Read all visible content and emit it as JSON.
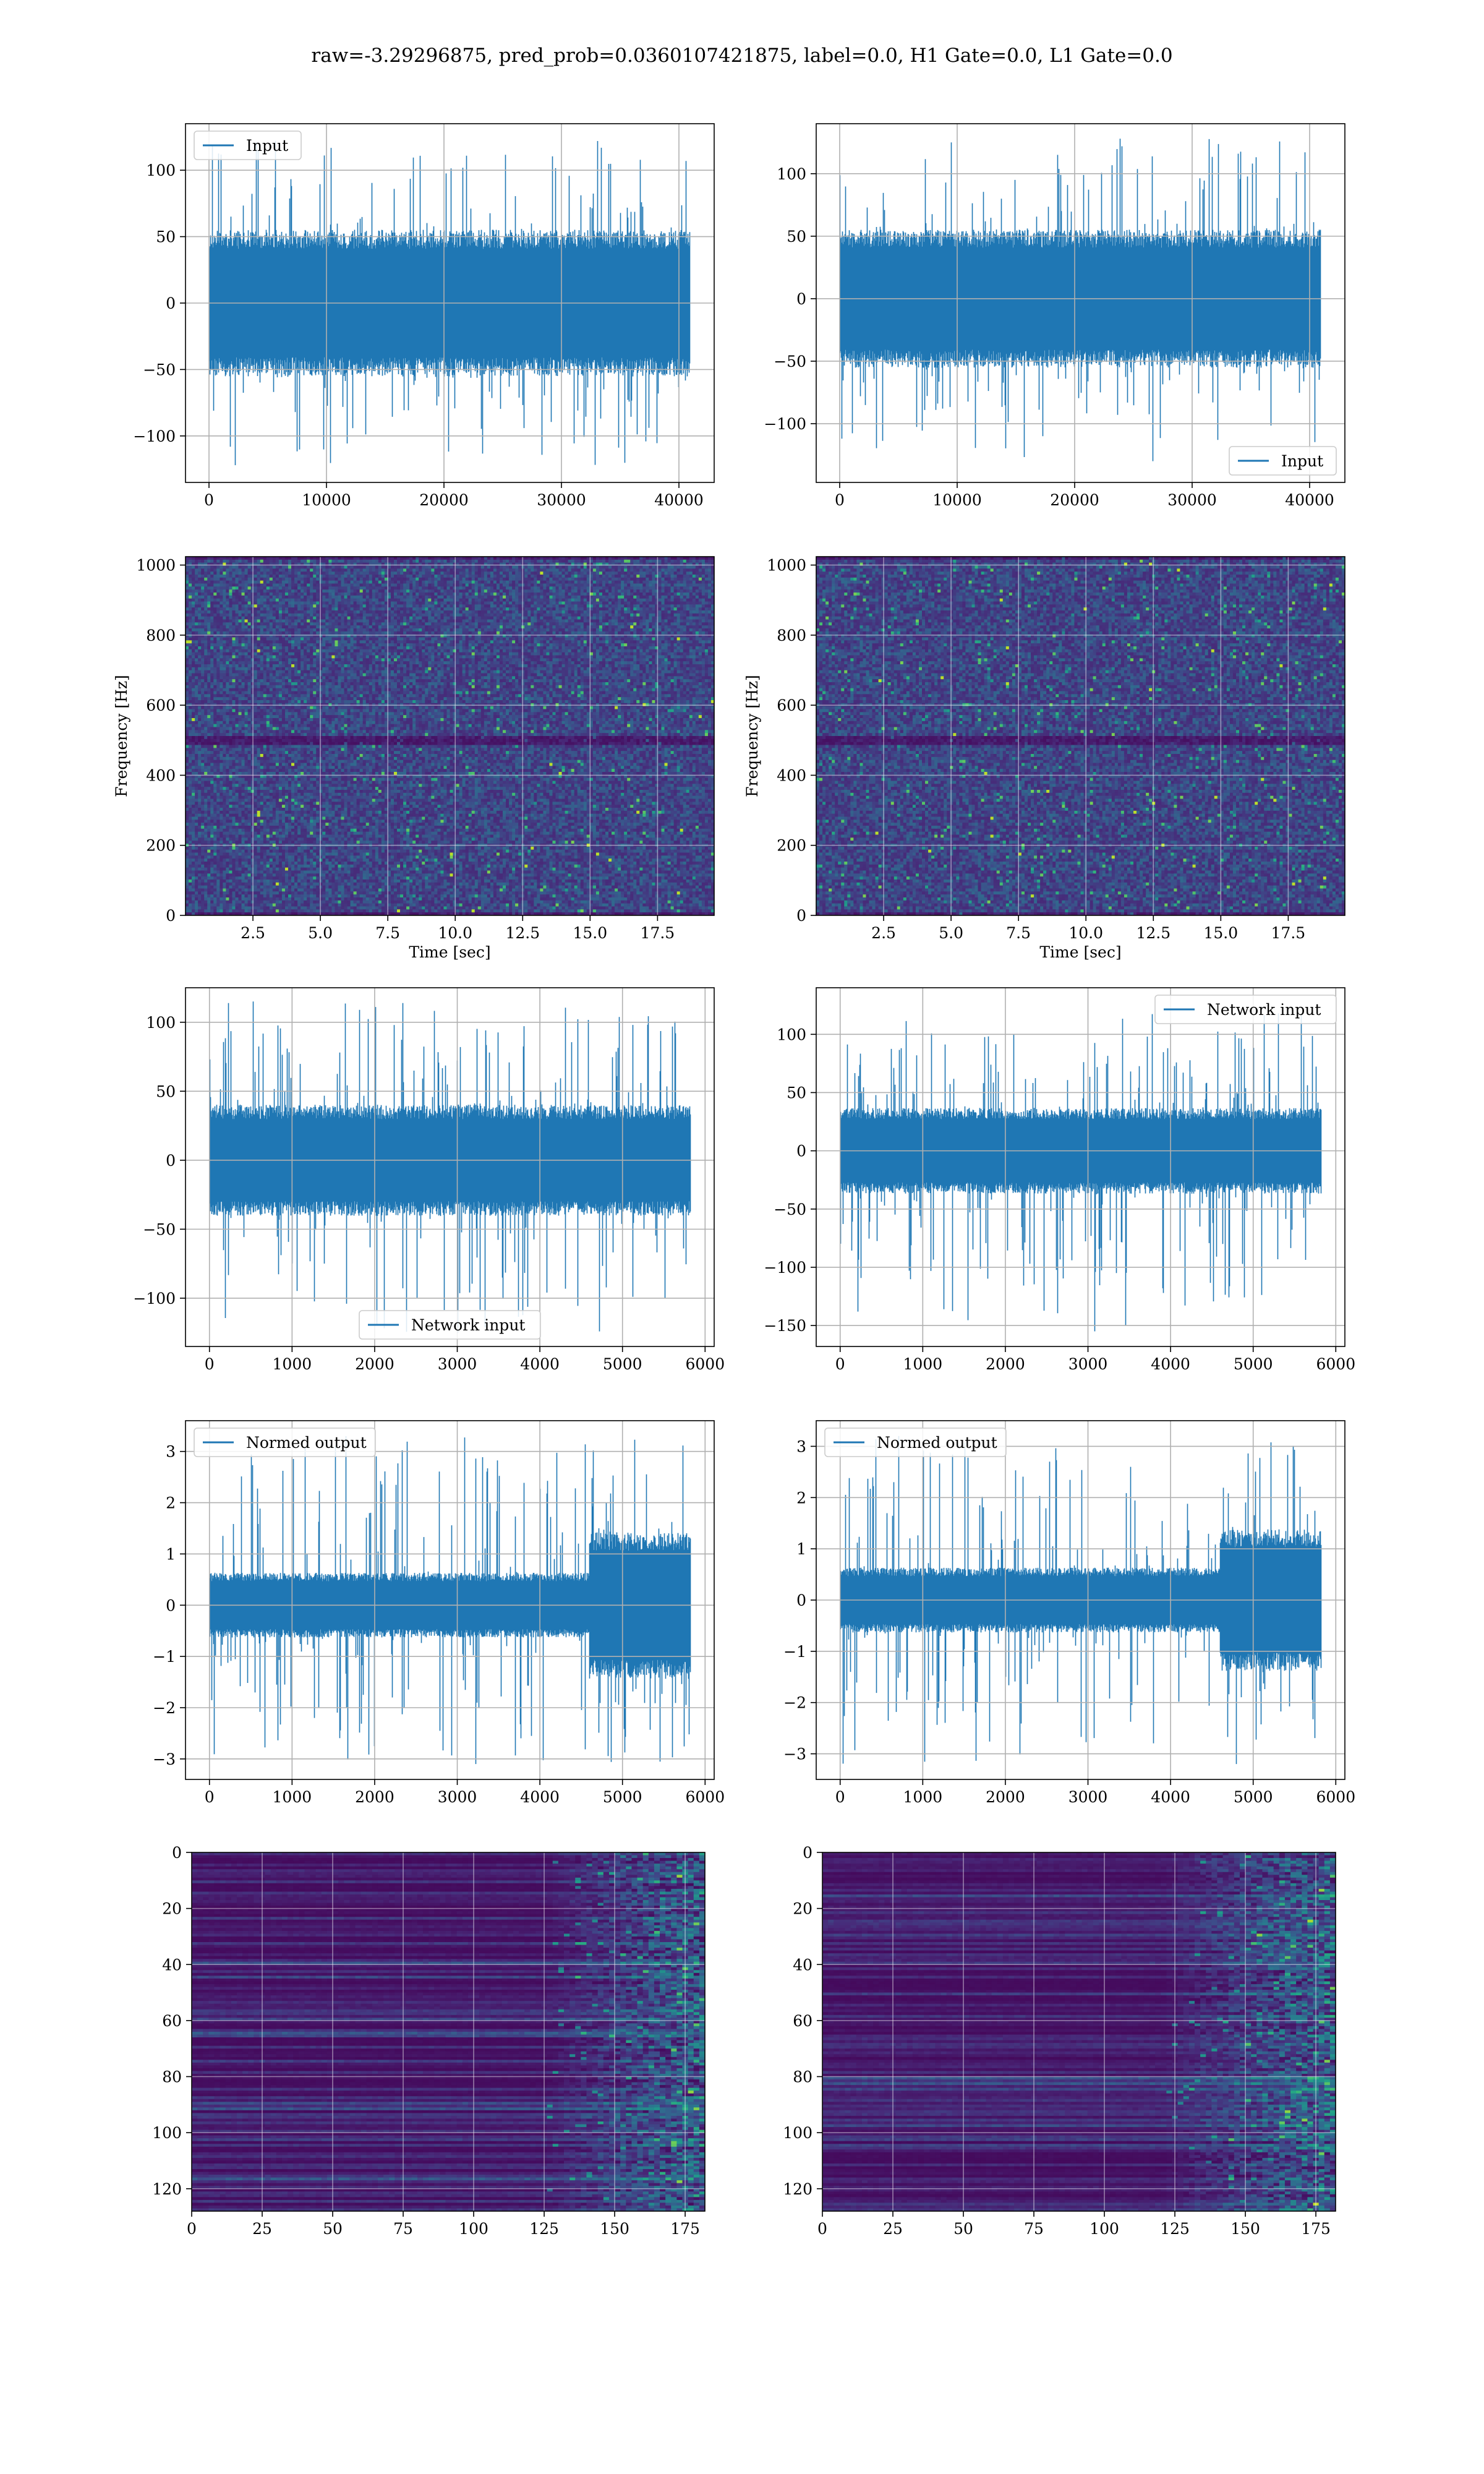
{
  "figure": {
    "suptitle": "raw=-3.29296875, pred_prob=0.0360107421875, label=0.0, H1 Gate=0.0, L1 Gate=0.0"
  },
  "chart_data": [
    {
      "id": "input-h1",
      "type": "line",
      "series": [
        {
          "name": "Input"
        }
      ],
      "legend": "upper left",
      "xlim": [
        -2000,
        43000
      ],
      "ylim": [
        -135,
        135
      ],
      "xticks": [
        0,
        10000,
        20000,
        30000,
        40000
      ],
      "yticks": [
        -100,
        -50,
        0,
        50,
        100
      ],
      "xticklabels": [
        "0",
        "10000",
        "20000",
        "30000",
        "40000"
      ],
      "yticklabels": [
        "−100",
        "−50",
        "0",
        "50",
        "100"
      ],
      "signal": {
        "n": 40960,
        "band": 48,
        "peak": 122,
        "min": -122
      },
      "color": "#1f77b4"
    },
    {
      "id": "input-l1",
      "type": "line",
      "series": [
        {
          "name": "Input"
        }
      ],
      "legend": "lower right",
      "xlim": [
        -2000,
        43000
      ],
      "ylim": [
        -147,
        140
      ],
      "xticks": [
        0,
        10000,
        20000,
        30000,
        40000
      ],
      "yticks": [
        -100,
        -50,
        0,
        50,
        100
      ],
      "xticklabels": [
        "0",
        "10000",
        "20000",
        "30000",
        "40000"
      ],
      "yticklabels": [
        "−100",
        "−50",
        "0",
        "50",
        "100"
      ],
      "signal": {
        "n": 40960,
        "band": 48,
        "peak": 128,
        "min": -130
      },
      "color": "#1f77b4"
    },
    {
      "id": "spectrogram-h1",
      "type": "heatmap",
      "xlabel": "Time [sec]",
      "ylabel": "Frequency [Hz]",
      "xlim": [
        0,
        19.6
      ],
      "ylim": [
        0,
        1024
      ],
      "xticks": [
        2.5,
        5.0,
        7.5,
        10.0,
        12.5,
        15.0,
        17.5
      ],
      "yticks": [
        0,
        200,
        400,
        600,
        800,
        1000
      ],
      "xticklabels": [
        "2.5",
        "5.0",
        "7.5",
        "10.0",
        "12.5",
        "15.0",
        "17.5"
      ],
      "yticklabels": [
        "0",
        "200",
        "400",
        "600",
        "800",
        "1000"
      ],
      "notch_hz": 505
    },
    {
      "id": "spectrogram-l1",
      "type": "heatmap",
      "xlabel": "Time [sec]",
      "ylabel": "Frequency [Hz]",
      "xlim": [
        0,
        19.6
      ],
      "ylim": [
        0,
        1024
      ],
      "xticks": [
        2.5,
        5.0,
        7.5,
        10.0,
        12.5,
        15.0,
        17.5
      ],
      "yticks": [
        0,
        200,
        400,
        600,
        800,
        1000
      ],
      "xticklabels": [
        "2.5",
        "5.0",
        "7.5",
        "10.0",
        "12.5",
        "15.0",
        "17.5"
      ],
      "yticklabels": [
        "0",
        "200",
        "400",
        "600",
        "800",
        "1000"
      ],
      "notch_hz": 505
    },
    {
      "id": "network-input-h1",
      "type": "line",
      "series": [
        {
          "name": "Network input"
        }
      ],
      "legend": "lower center",
      "xlim": [
        -290,
        6110
      ],
      "ylim": [
        -135,
        125
      ],
      "xticks": [
        0,
        1000,
        2000,
        3000,
        4000,
        5000,
        6000
      ],
      "yticks": [
        -100,
        -50,
        0,
        50,
        100
      ],
      "xticklabels": [
        "0",
        "1000",
        "2000",
        "3000",
        "4000",
        "5000",
        "6000"
      ],
      "yticklabels": [
        "−100",
        "−50",
        "0",
        "50",
        "100"
      ],
      "signal": {
        "n": 5824,
        "band": 35,
        "peak": 115,
        "min": -125
      },
      "color": "#1f77b4"
    },
    {
      "id": "network-input-l1",
      "type": "line",
      "series": [
        {
          "name": "Network input"
        }
      ],
      "legend": "upper right",
      "xlim": [
        -290,
        6110
      ],
      "ylim": [
        -168,
        140
      ],
      "xticks": [
        0,
        1000,
        2000,
        3000,
        4000,
        5000,
        6000
      ],
      "yticks": [
        -150,
        -100,
        -50,
        0,
        50,
        100
      ],
      "xticklabels": [
        "0",
        "1000",
        "2000",
        "3000",
        "4000",
        "5000",
        "6000"
      ],
      "yticklabels": [
        "−150",
        "−100",
        "−50",
        "0",
        "50",
        "100"
      ],
      "signal": {
        "n": 5824,
        "band": 32,
        "peak": 118,
        "min": -155
      },
      "color": "#1f77b4"
    },
    {
      "id": "normed-output-h1",
      "type": "line",
      "series": [
        {
          "name": "Normed output"
        }
      ],
      "legend": "upper left",
      "xlim": [
        -290,
        6110
      ],
      "ylim": [
        -3.4,
        3.6
      ],
      "xticks": [
        0,
        1000,
        2000,
        3000,
        4000,
        5000,
        6000
      ],
      "yticks": [
        -3,
        -2,
        -1,
        0,
        1,
        2,
        3
      ],
      "xticklabels": [
        "0",
        "1000",
        "2000",
        "3000",
        "4000",
        "5000",
        "6000"
      ],
      "yticklabels": [
        "−3",
        "−2",
        "−1",
        "0",
        "1",
        "2",
        "3"
      ],
      "signal": {
        "n": 5824,
        "band": 0.55,
        "burst_start": 4600,
        "burst_band": 1.25,
        "peak": 3.3,
        "min": -3.1
      },
      "color": "#1f77b4"
    },
    {
      "id": "normed-output-l1",
      "type": "line",
      "series": [
        {
          "name": "Normed output"
        }
      ],
      "legend": "upper left",
      "xlim": [
        -290,
        6110
      ],
      "ylim": [
        -3.5,
        3.5
      ],
      "xticks": [
        0,
        1000,
        2000,
        3000,
        4000,
        5000,
        6000
      ],
      "yticks": [
        -3,
        -2,
        -1,
        0,
        1,
        2,
        3
      ],
      "xticklabels": [
        "0",
        "1000",
        "2000",
        "3000",
        "4000",
        "5000",
        "6000"
      ],
      "yticklabels": [
        "−3",
        "−2",
        "−1",
        "0",
        "1",
        "2",
        "3"
      ],
      "signal": {
        "n": 5824,
        "band": 0.55,
        "burst_start": 4600,
        "burst_band": 1.2,
        "peak": 3.2,
        "min": -3.2
      },
      "color": "#1f77b4"
    },
    {
      "id": "feature-map-h1",
      "type": "heatmap",
      "xlim": [
        0,
        182
      ],
      "ylim": [
        128,
        0
      ],
      "xticks": [
        0,
        25,
        50,
        75,
        100,
        125,
        150,
        175
      ],
      "yticks": [
        0,
        20,
        40,
        60,
        80,
        100,
        120
      ],
      "xticklabels": [
        "0",
        "25",
        "50",
        "75",
        "100",
        "125",
        "150",
        "175"
      ],
      "yticklabels": [
        "0",
        "20",
        "40",
        "60",
        "80",
        "100",
        "120"
      ],
      "rows": 128,
      "cols": 182,
      "activity_onset": 125
    },
    {
      "id": "feature-map-l1",
      "type": "heatmap",
      "xlim": [
        0,
        182
      ],
      "ylim": [
        128,
        0
      ],
      "xticks": [
        0,
        25,
        50,
        75,
        100,
        125,
        150,
        175
      ],
      "yticks": [
        0,
        20,
        40,
        60,
        80,
        100,
        120
      ],
      "xticklabels": [
        "0",
        "25",
        "50",
        "75",
        "100",
        "125",
        "150",
        "175"
      ],
      "yticklabels": [
        "0",
        "20",
        "40",
        "60",
        "80",
        "100",
        "120"
      ],
      "rows": 128,
      "cols": 182,
      "activity_onset": 120
    }
  ]
}
